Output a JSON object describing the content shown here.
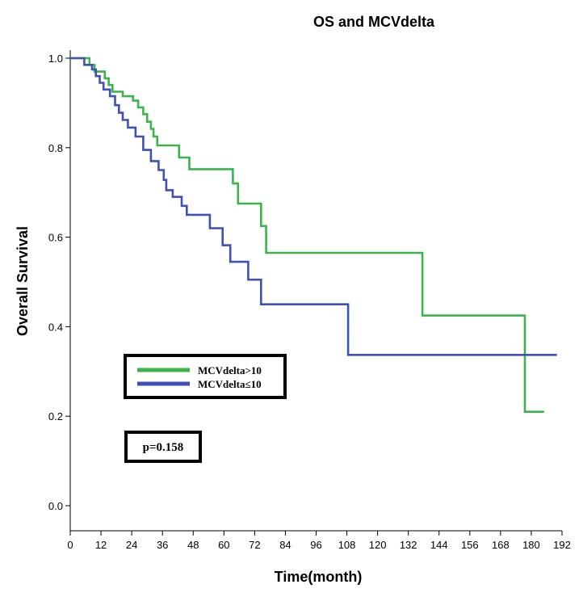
{
  "chart_data": {
    "type": "line",
    "step": true,
    "title": "OS and MCVdelta",
    "xlabel": "Time(month)",
    "ylabel": "Overall Survival",
    "xlim": [
      0,
      192
    ],
    "ylim": [
      0.0,
      1.0
    ],
    "xticks": [
      0,
      12,
      24,
      36,
      48,
      60,
      72,
      84,
      96,
      108,
      120,
      132,
      144,
      156,
      168,
      180,
      192
    ],
    "xtick_labels": [
      "0",
      "12",
      "24",
      "36",
      "48",
      "60",
      "72",
      "84",
      "96",
      "108",
      "120",
      "132",
      "144",
      "156",
      "168",
      "180",
      "192"
    ],
    "yticks": [
      0.0,
      0.2,
      0.4,
      0.6,
      0.8,
      1.0
    ],
    "ytick_labels": [
      "0.0",
      "0.2",
      "0.4",
      "0.6",
      "0.8",
      "1.0"
    ],
    "legend_position": "center-left",
    "annotation": "p=0.158",
    "colors": {
      "high": "#3cb44b",
      "low": "#3f51b5"
    },
    "series": [
      {
        "name": "MCVdelta>10",
        "color": "#3cb44b",
        "points": [
          [
            0,
            1.0
          ],
          [
            7,
            1.0
          ],
          [
            7.5,
            0.985
          ],
          [
            9,
            0.985
          ],
          [
            9.5,
            0.97
          ],
          [
            13,
            0.97
          ],
          [
            13.5,
            0.955
          ],
          [
            14.5,
            0.955
          ],
          [
            15,
            0.94
          ],
          [
            16,
            0.94
          ],
          [
            16.5,
            0.925
          ],
          [
            20,
            0.925
          ],
          [
            20.5,
            0.915
          ],
          [
            24,
            0.915
          ],
          [
            24.5,
            0.905
          ],
          [
            26,
            0.905
          ],
          [
            26.5,
            0.89
          ],
          [
            28,
            0.89
          ],
          [
            28.5,
            0.875
          ],
          [
            29.5,
            0.875
          ],
          [
            30,
            0.858
          ],
          [
            31,
            0.858
          ],
          [
            31.5,
            0.842
          ],
          [
            32,
            0.842
          ],
          [
            32.5,
            0.825
          ],
          [
            33.5,
            0.825
          ],
          [
            34,
            0.805
          ],
          [
            42,
            0.805
          ],
          [
            42.5,
            0.778
          ],
          [
            46,
            0.778
          ],
          [
            46.5,
            0.752
          ],
          [
            63,
            0.752
          ],
          [
            63.5,
            0.72
          ],
          [
            65,
            0.72
          ],
          [
            65.5,
            0.675
          ],
          [
            74,
            0.675
          ],
          [
            74.5,
            0.625
          ],
          [
            76,
            0.625
          ],
          [
            76.5,
            0.565
          ],
          [
            137,
            0.565
          ],
          [
            137.5,
            0.425
          ],
          [
            177,
            0.425
          ],
          [
            177.5,
            0.21
          ],
          [
            185,
            0.21
          ]
        ]
      },
      {
        "name": "MCVdelta≤10",
        "color": "#3f51b5",
        "points": [
          [
            0,
            1.0
          ],
          [
            5,
            1.0
          ],
          [
            5.5,
            0.985
          ],
          [
            8,
            0.985
          ],
          [
            8.5,
            0.975
          ],
          [
            9.5,
            0.975
          ],
          [
            10,
            0.96
          ],
          [
            11,
            0.96
          ],
          [
            11.5,
            0.945
          ],
          [
            12.5,
            0.945
          ],
          [
            13,
            0.93
          ],
          [
            15,
            0.93
          ],
          [
            15.5,
            0.915
          ],
          [
            17,
            0.915
          ],
          [
            17.5,
            0.895
          ],
          [
            18.5,
            0.895
          ],
          [
            19,
            0.878
          ],
          [
            20,
            0.878
          ],
          [
            20.5,
            0.862
          ],
          [
            22,
            0.862
          ],
          [
            22.5,
            0.845
          ],
          [
            25,
            0.845
          ],
          [
            25.5,
            0.825
          ],
          [
            28,
            0.825
          ],
          [
            28.5,
            0.795
          ],
          [
            31,
            0.795
          ],
          [
            31.5,
            0.77
          ],
          [
            34,
            0.77
          ],
          [
            34.5,
            0.75
          ],
          [
            36,
            0.75
          ],
          [
            36.5,
            0.728
          ],
          [
            37,
            0.728
          ],
          [
            37.5,
            0.705
          ],
          [
            39.5,
            0.705
          ],
          [
            40,
            0.69
          ],
          [
            43,
            0.69
          ],
          [
            43.5,
            0.67
          ],
          [
            45,
            0.67
          ],
          [
            45.5,
            0.65
          ],
          [
            54,
            0.65
          ],
          [
            54.5,
            0.62
          ],
          [
            59,
            0.62
          ],
          [
            59.5,
            0.582
          ],
          [
            62,
            0.582
          ],
          [
            62.5,
            0.545
          ],
          [
            69,
            0.545
          ],
          [
            69.5,
            0.505
          ],
          [
            74,
            0.505
          ],
          [
            74.5,
            0.45
          ],
          [
            108,
            0.45
          ],
          [
            108.5,
            0.337
          ],
          [
            190,
            0.337
          ]
        ]
      }
    ]
  }
}
